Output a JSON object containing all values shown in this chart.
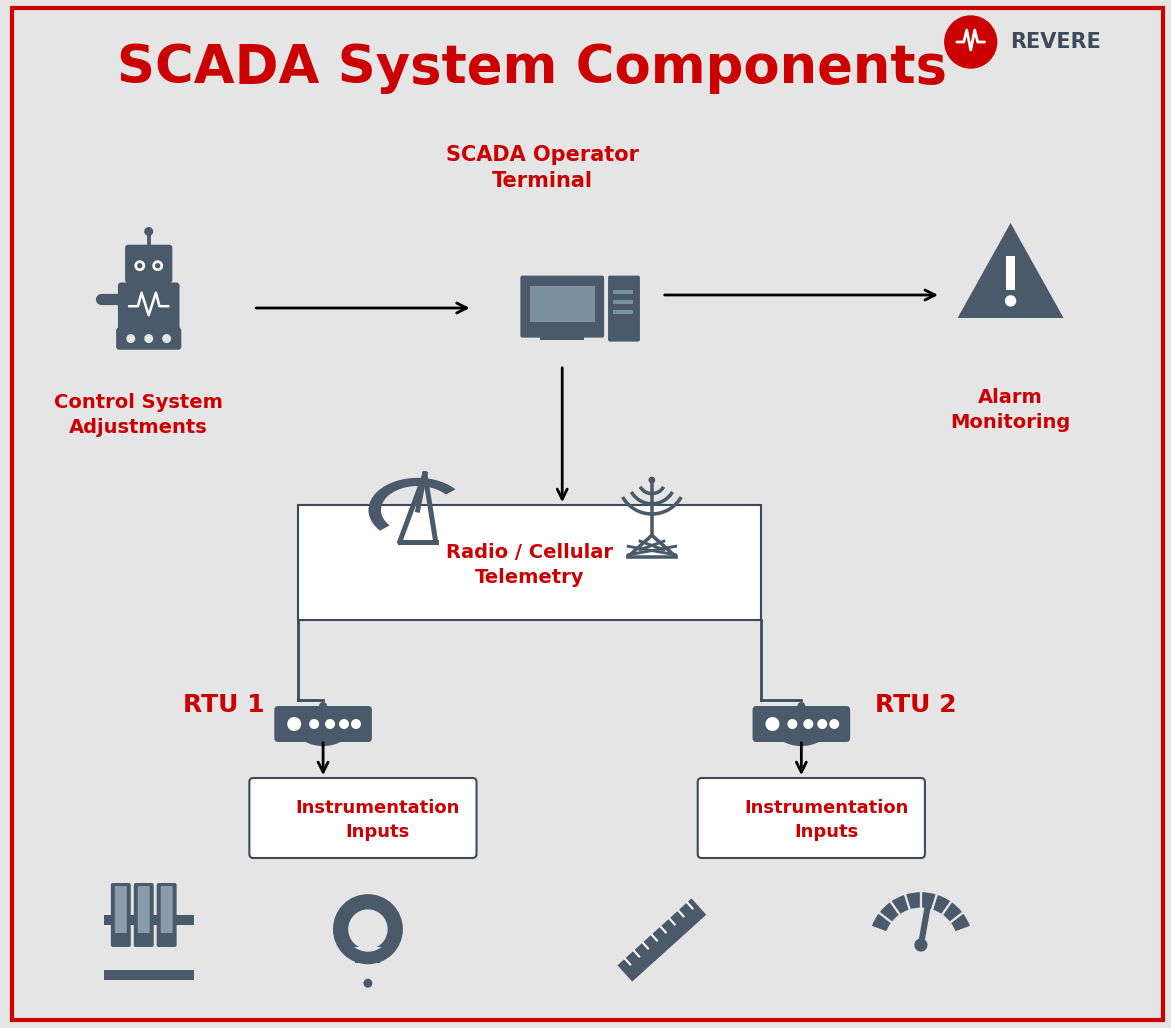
{
  "title": "SCADA System Components",
  "title_color": "#CC0000",
  "title_fontsize": 38,
  "background_color": "#E5E5E5",
  "border_color": "#CC0000",
  "icon_color": "#4A5A6B",
  "red_color": "#CC0000",
  "dark_gray": "#3D4A5C",
  "line_color": "#3D4A5C",
  "labels": {
    "scada_operator": "SCADA Operator\nTerminal",
    "control_system": "Control System\nAdjustments",
    "alarm_monitoring": "Alarm\nMonitoring",
    "radio_telemetry": "Radio / Cellular\nTelemetry",
    "rtu1": "RTU 1",
    "rtu2": "RTU 2",
    "instrumentation1": "Instrumentation\nInputs",
    "instrumentation2": "Instrumentation\nInputs",
    "revere": "REVERE"
  }
}
